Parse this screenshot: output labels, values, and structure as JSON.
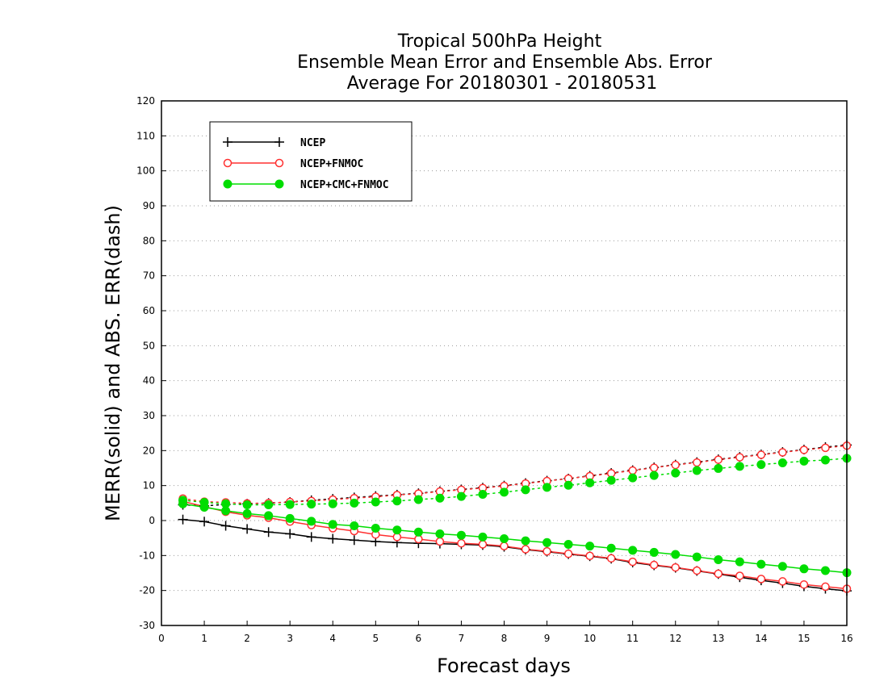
{
  "chart_data": {
    "type": "line",
    "title_lines": [
      "Tropical 500hPa Height",
      "Ensemble Mean Error and Ensemble Abs. Error",
      "Average For 20180301 - 20180531"
    ],
    "xlabel": "Forecast days",
    "ylabel": "MERR(solid) and ABS. ERR(dash)",
    "xlim": [
      0,
      16
    ],
    "ylim": [
      -30,
      120
    ],
    "x_ticks": [
      0,
      1,
      2,
      3,
      4,
      5,
      6,
      7,
      8,
      9,
      10,
      11,
      12,
      13,
      14,
      15,
      16
    ],
    "y_ticks": [
      -30,
      -20,
      -10,
      0,
      10,
      20,
      30,
      40,
      50,
      60,
      70,
      80,
      90,
      100,
      110,
      120
    ],
    "grid": "horizontal dotted",
    "legend_position": "top-left",
    "x": [
      0.5,
      1,
      1.5,
      2,
      2.5,
      3,
      3.5,
      4,
      4.5,
      5,
      5.5,
      6,
      6.5,
      7,
      7.5,
      8,
      8.5,
      9,
      9.5,
      10,
      10.5,
      11,
      11.5,
      12,
      12.5,
      13,
      13.5,
      14,
      14.5,
      15,
      15.5,
      16
    ],
    "series": [
      {
        "name": "NCEP",
        "color": "#000000",
        "marker": "plus",
        "merr": [
          0.3,
          -0.3,
          -1.5,
          -2.4,
          -3.3,
          -3.8,
          -4.7,
          -5.2,
          -5.6,
          -6.0,
          -6.3,
          -6.5,
          -6.6,
          -6.8,
          -7.0,
          -7.5,
          -8.3,
          -8.9,
          -9.6,
          -10.2,
          -10.9,
          -12.0,
          -12.8,
          -13.5,
          -14.4,
          -15.3,
          -16.2,
          -17.1,
          -17.9,
          -18.8,
          -19.5,
          -20.1
        ],
        "abserr": [
          4.5,
          4.2,
          4.6,
          4.8,
          5.0,
          5.3,
          5.8,
          6.2,
          6.6,
          7.0,
          7.4,
          7.8,
          8.4,
          8.9,
          9.4,
          10.0,
          10.7,
          11.4,
          12.0,
          12.8,
          13.6,
          14.4,
          15.2,
          16.0,
          16.7,
          17.5,
          18.2,
          18.9,
          19.6,
          20.3,
          21.0,
          21.6
        ]
      },
      {
        "name": "NCEP+FNMOC",
        "color": "#ff3030",
        "marker": "open-circle",
        "merr": [
          5.5,
          4.0,
          2.5,
          1.5,
          0.8,
          -0.3,
          -1.3,
          -2.2,
          -3.0,
          -4.0,
          -4.7,
          -5.3,
          -6.0,
          -6.5,
          -6.8,
          -7.3,
          -8.2,
          -8.8,
          -9.5,
          -10.1,
          -10.8,
          -11.8,
          -12.7,
          -13.4,
          -14.3,
          -15.2,
          -15.8,
          -16.7,
          -17.4,
          -18.3,
          -18.9,
          -19.5
        ],
        "abserr": [
          6.3,
          5.4,
          5.2,
          4.9,
          5.0,
          5.3,
          5.6,
          6.0,
          6.4,
          6.8,
          7.3,
          7.7,
          8.3,
          8.8,
          9.3,
          9.9,
          10.6,
          11.3,
          12.0,
          12.7,
          13.5,
          14.3,
          15.1,
          15.9,
          16.6,
          17.4,
          18.1,
          18.8,
          19.5,
          20.2,
          20.8,
          21.4
        ]
      },
      {
        "name": "NCEP+CMC+FNMOC",
        "color": "#00dd00",
        "marker": "filled-circle",
        "merr": [
          4.8,
          3.8,
          2.8,
          2.0,
          1.4,
          0.6,
          -0.2,
          -1.1,
          -1.5,
          -2.2,
          -2.7,
          -3.3,
          -3.8,
          -4.2,
          -4.7,
          -5.2,
          -5.8,
          -6.3,
          -6.8,
          -7.3,
          -7.9,
          -8.5,
          -9.1,
          -9.7,
          -10.4,
          -11.2,
          -11.8,
          -12.5,
          -13.1,
          -13.8,
          -14.3,
          -14.9
        ],
        "abserr": [
          5.8,
          5.2,
          4.8,
          4.5,
          4.5,
          4.6,
          4.7,
          4.8,
          5.0,
          5.3,
          5.6,
          6.0,
          6.4,
          6.9,
          7.5,
          8.1,
          8.8,
          9.5,
          10.1,
          10.8,
          11.5,
          12.2,
          12.9,
          13.6,
          14.3,
          14.9,
          15.5,
          16.0,
          16.5,
          17.0,
          17.3,
          17.8
        ]
      }
    ]
  }
}
